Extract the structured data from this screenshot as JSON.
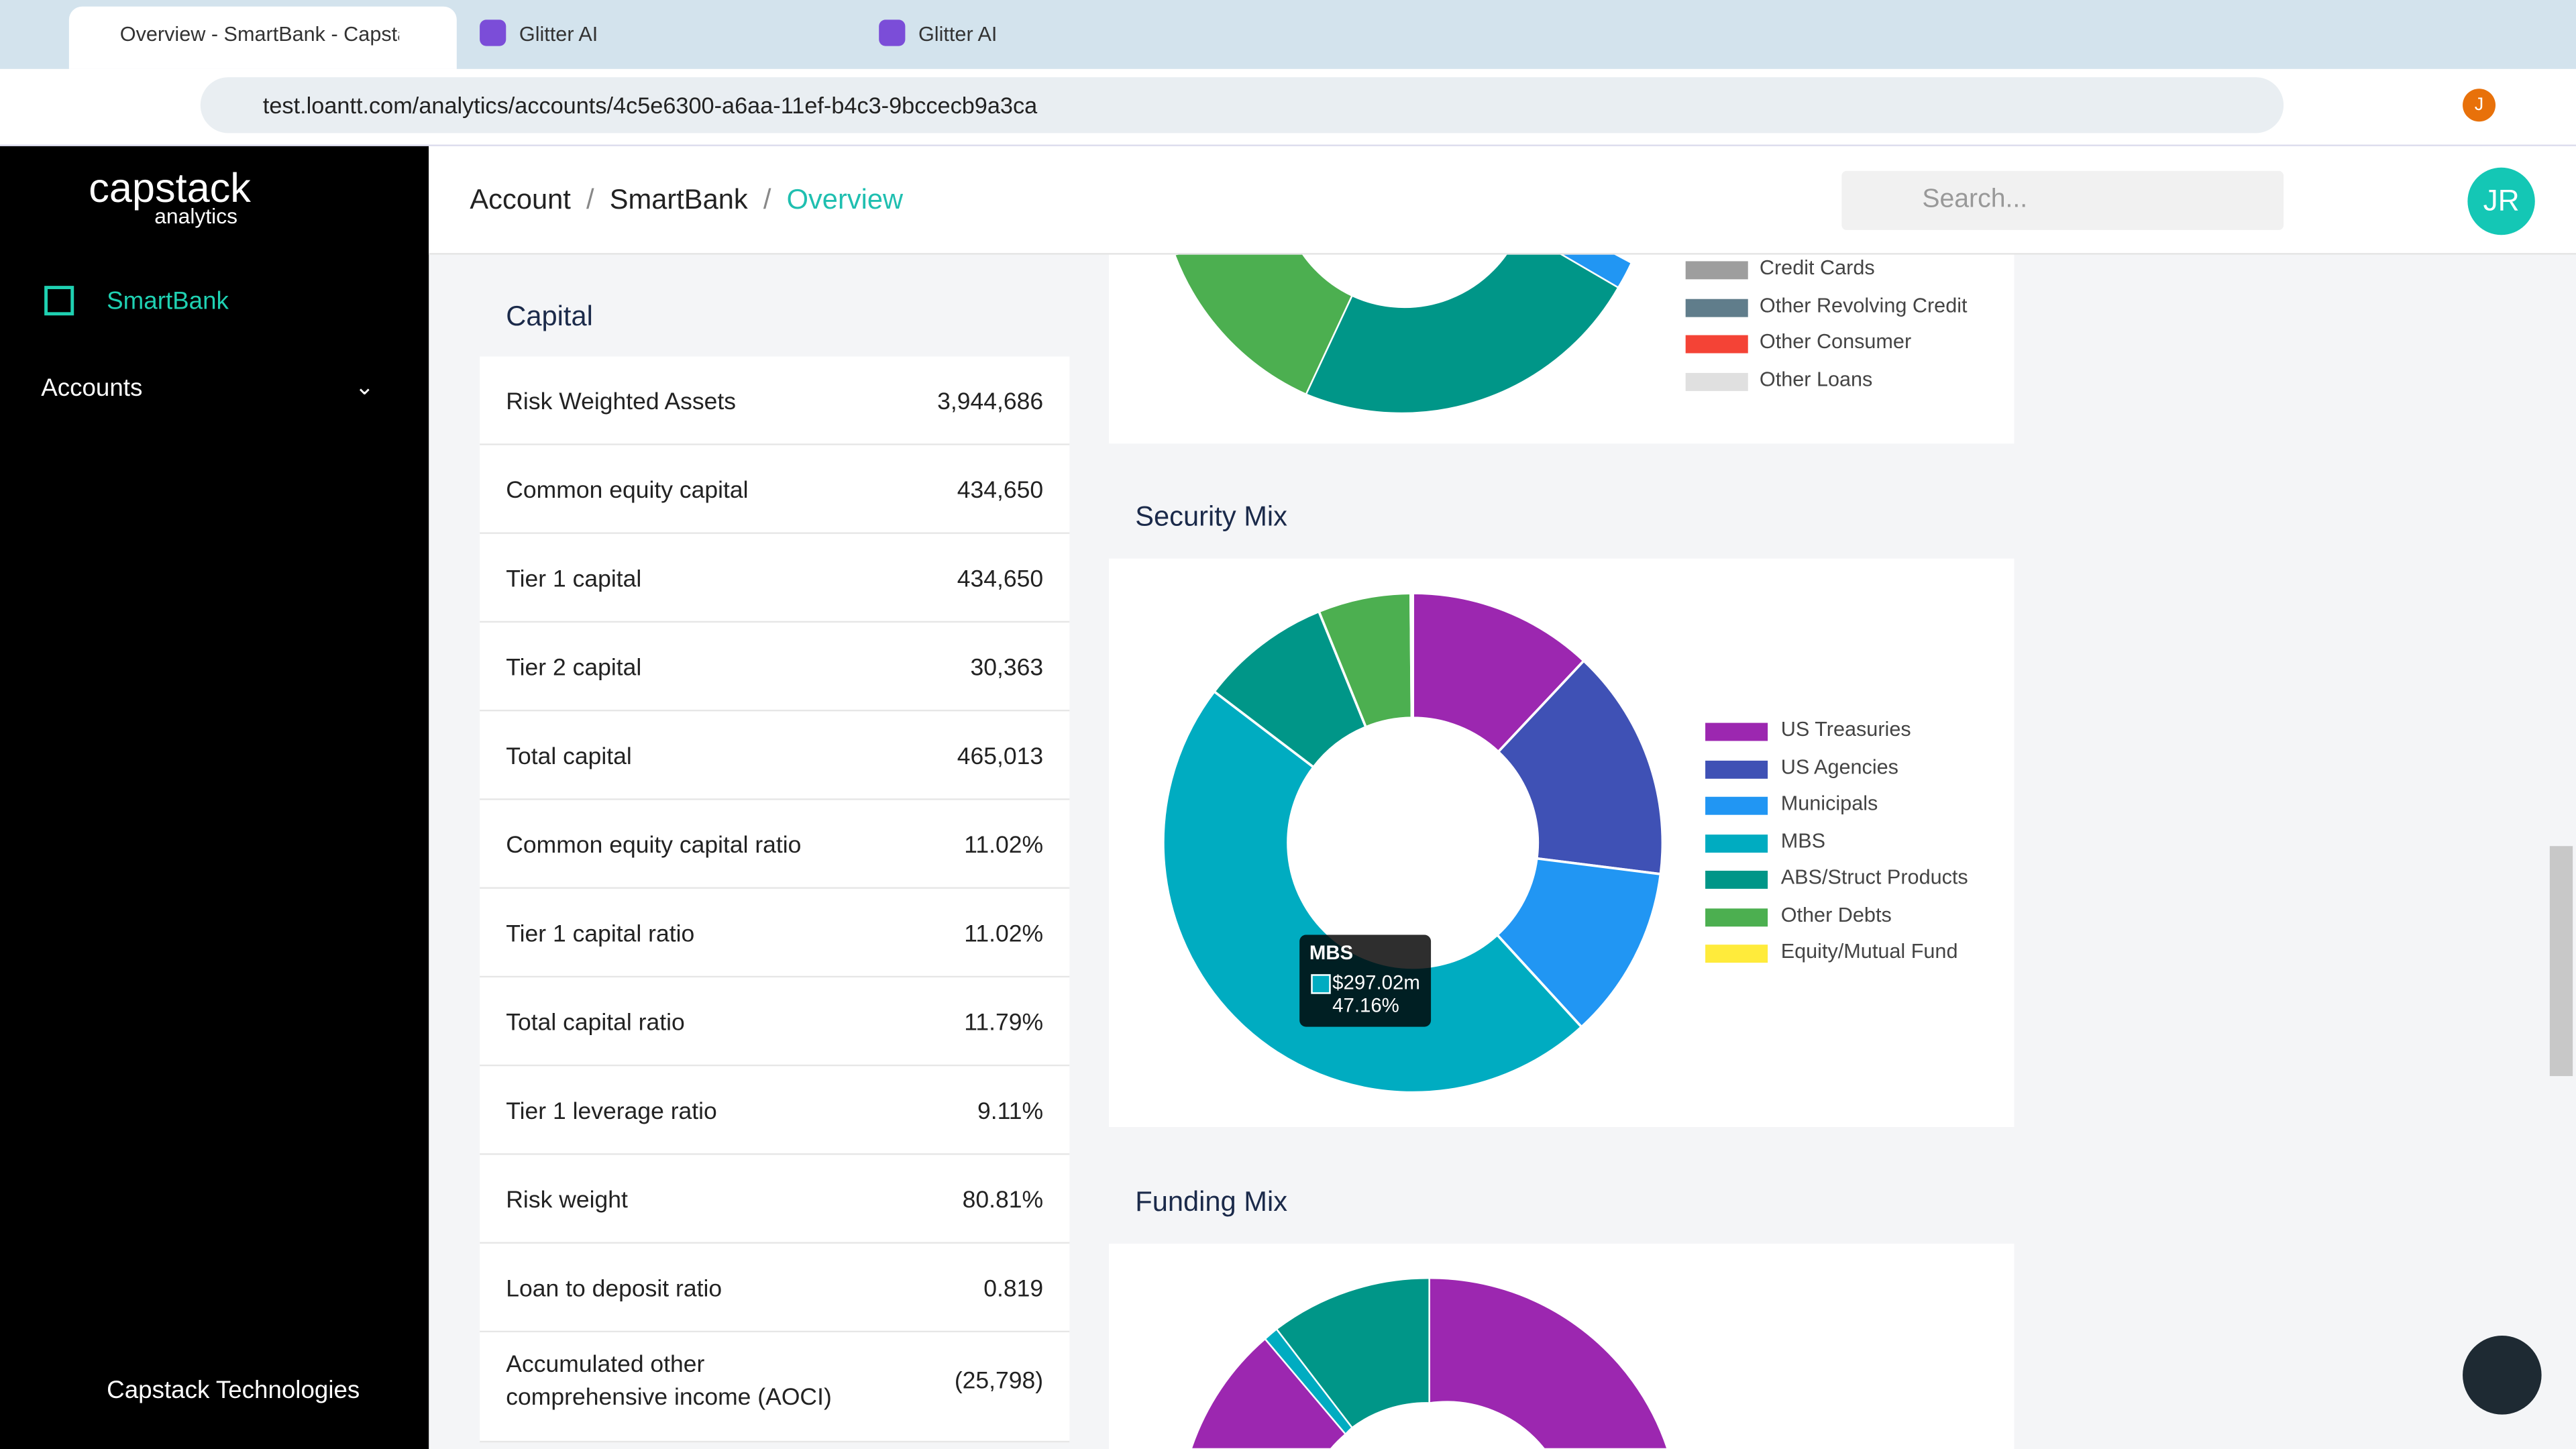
{
  "browser": {
    "tabs": [
      "Overview - SmartBank - Capstack",
      "Glitter AI",
      "Glitter AI"
    ],
    "url": "test.loantt.com/analytics/accounts/4c5e6300-a6aa-11ef-b4c3-9bccecb9a3ca",
    "profile": "J"
  },
  "sidebar": {
    "logo": "capstack",
    "logo_sub": "analytics",
    "nav": [
      "SmartBank",
      "Accounts"
    ],
    "footer": "Capstack Technologies"
  },
  "header": {
    "breadcrumb": [
      "Account",
      "SmartBank",
      "Overview"
    ],
    "search": "Search...",
    "avatar": "JR"
  },
  "capital": {
    "title": "Capital",
    "rows": [
      [
        "Risk Weighted Assets",
        "3,944,686"
      ],
      [
        "Common equity capital",
        "434,650"
      ],
      [
        "Tier 1 capital",
        "434,650"
      ],
      [
        "Tier 2 capital",
        "30,363"
      ],
      [
        "Total capital",
        "465,013"
      ],
      [
        "Common equity capital ratio",
        "11.02%"
      ],
      [
        "Tier 1 capital ratio",
        "11.02%"
      ],
      [
        "Total capital ratio",
        "11.79%"
      ],
      [
        "Tier 1 leverage ratio",
        "9.11%"
      ],
      [
        "Risk weight",
        "80.81%"
      ],
      [
        "Loan to deposit ratio",
        "0.819"
      ],
      [
        "Accumulated other comprehensive income (AOCI)",
        "(25,798)"
      ]
    ]
  },
  "loan_legend": [
    {
      "name": "Credit Cards",
      "color": "#9e9e9e"
    },
    {
      "name": "Other Revolving Credit",
      "color": "#607d8b"
    },
    {
      "name": "Other Consumer",
      "color": "#f44336"
    },
    {
      "name": "Other Loans",
      "color": "#e0e0e0"
    }
  ],
  "chart_data": {
    "type": "pie",
    "title": "Security Mix",
    "categories": [
      "US Treasuries",
      "US Agencies",
      "Municipals",
      "MBS",
      "ABS/Struct Products",
      "Other Debts",
      "Equity/Mutual Fund"
    ],
    "values": [
      12,
      15,
      11.2,
      47.16,
      8.5,
      6,
      0.14
    ],
    "colors": [
      "#9c27b0",
      "#3f51b5",
      "#2196f3",
      "#00acc1",
      "#009688",
      "#4caf50",
      "#ffeb3b"
    ],
    "tooltip": {
      "title": "MBS",
      "amount": "$297.02m",
      "percent": "47.16%"
    }
  },
  "funding": {
    "title": "Funding Mix"
  }
}
